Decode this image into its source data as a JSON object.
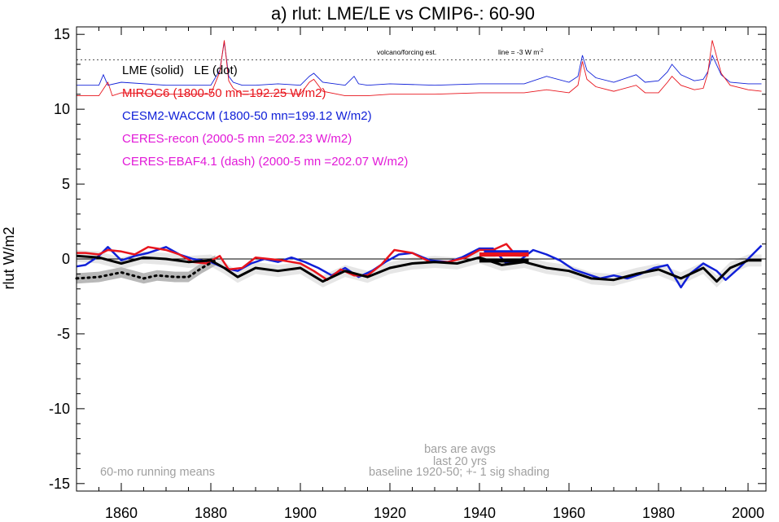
{
  "colors": {
    "lme": "#000000",
    "miroc6": "#e8141c",
    "cesm2": "#1020d8",
    "ceres": "#e21ad8",
    "shading_dark": "#b8b8b8",
    "shading_light": "#e6e6e6",
    "note_gray": "#a0a0a0"
  },
  "chart_data": {
    "type": "line",
    "title": "a) rlut: LME/LE vs CMIP6-: 60-90",
    "ylabel": "rlut W/m2",
    "xlim": [
      1850,
      2004
    ],
    "ylim": [
      -15.5,
      15.5
    ],
    "xticks": [
      1860,
      1880,
      1900,
      1920,
      1940,
      1960,
      1980,
      2000
    ],
    "yticks": [
      15,
      10,
      5,
      0,
      -5,
      -10,
      -15
    ],
    "reference_line": {
      "label": "line = -3 W m",
      "superscript": "-2",
      "y": 13.3
    },
    "forcing_label": "volcano/forcing est.",
    "legend": {
      "lme_le": "LME (solid)   LE (dot)",
      "miroc6": "MIROC6 (1800-50 mn=192.25 W/m2)",
      "cesm2": "CESM2-WACCM (1800-50 mn=199.12 W/m2)",
      "ceres_recon": "CERES-recon (2000-5 mn =202.23 W/m2)",
      "ceres_ebaf": "CERES-EBAF4.1 (dash) (2000-5 mn =202.07 W/m2)"
    },
    "notes": {
      "running_mean": "60-mo running means",
      "bars_line1": "bars are avgs",
      "bars_line2": "last 20 yrs",
      "baseline": "baseline 1920-50; +- 1 sig shading"
    },
    "series": [
      {
        "name": "LME (solid)",
        "x": [
          1850,
          1855,
          1860,
          1865,
          1870,
          1875,
          1880,
          1883,
          1886,
          1890,
          1895,
          1900,
          1905,
          1910,
          1915,
          1920,
          1925,
          1930,
          1935,
          1940,
          1945,
          1950,
          1955,
          1960,
          1965,
          1970,
          1975,
          1980,
          1985,
          1990,
          1993,
          1996,
          2000,
          2003
        ],
        "y": [
          0.2,
          0.1,
          -0.3,
          0.1,
          0.0,
          -0.2,
          -0.1,
          -0.6,
          -1.2,
          -0.6,
          -0.8,
          -0.6,
          -1.5,
          -0.8,
          -1.2,
          -0.6,
          -0.3,
          -0.2,
          -0.3,
          0.1,
          -0.4,
          -0.2,
          -0.6,
          -0.8,
          -1.3,
          -1.4,
          -1.0,
          -0.7,
          -1.3,
          -0.6,
          -1.5,
          -0.6,
          -0.1,
          -0.1
        ]
      },
      {
        "name": "LE (dot)",
        "x": [
          1850,
          1855,
          1860,
          1865,
          1868,
          1872,
          1875,
          1878,
          1881
        ],
        "y": [
          -1.3,
          -1.2,
          -0.9,
          -1.3,
          -1.1,
          -1.2,
          -1.2,
          -0.6,
          -0.1
        ]
      },
      {
        "name": "MIROC6",
        "x": [
          1850,
          1852,
          1855,
          1857,
          1860,
          1863,
          1866,
          1870,
          1873,
          1876,
          1879,
          1882,
          1884,
          1887,
          1890,
          1893,
          1896,
          1900,
          1903,
          1906,
          1909,
          1912,
          1915,
          1918,
          1921,
          1925,
          1929,
          1933,
          1937,
          1940,
          1943,
          1946,
          1948
        ],
        "y": [
          0.4,
          0.4,
          0.3,
          0.6,
          0.5,
          0.3,
          0.8,
          0.6,
          0.3,
          -0.2,
          -0.3,
          0.2,
          -0.7,
          -0.6,
          0.1,
          0.0,
          -0.1,
          -0.3,
          -0.8,
          -1.4,
          -0.7,
          -1.1,
          -1.1,
          -0.4,
          0.6,
          0.4,
          -0.2,
          -0.2,
          0.1,
          0.6,
          0.6,
          1.0,
          0.3
        ]
      },
      {
        "name": "CESM2-WACCM",
        "x": [
          1850,
          1852,
          1855,
          1857,
          1860,
          1863,
          1866,
          1870,
          1873,
          1876,
          1880,
          1883,
          1886,
          1889,
          1892,
          1895,
          1898,
          1901,
          1904,
          1907,
          1910,
          1913,
          1916,
          1919,
          1922,
          1925,
          1929,
          1933,
          1936,
          1940,
          1943,
          1946,
          1949,
          1952,
          1955,
          1958,
          1961,
          1964,
          1967,
          1970,
          1973,
          1976,
          1979,
          1982,
          1985,
          1987,
          1990,
          1993,
          1995,
          1998,
          2001,
          2003
        ],
        "y": [
          -0.5,
          -0.4,
          0.2,
          0.8,
          -0.1,
          0.2,
          0.4,
          0.8,
          0.3,
          0.0,
          -0.2,
          -0.6,
          -0.8,
          -0.3,
          0.0,
          -0.2,
          0.1,
          -0.2,
          -0.6,
          -1.1,
          -0.6,
          -1.2,
          -0.8,
          -0.2,
          0.3,
          0.4,
          -0.1,
          -0.2,
          0.1,
          0.7,
          0.7,
          -0.3,
          -0.1,
          0.6,
          0.3,
          -0.1,
          -0.7,
          -1.0,
          -1.3,
          -1.1,
          -1.3,
          -1.0,
          -0.6,
          -0.4,
          -1.9,
          -1.0,
          -0.3,
          -0.8,
          -1.4,
          -0.6,
          0.3,
          0.9
        ]
      },
      {
        "name": "volcano/forcing est. (LME)",
        "x": [
          1850,
          1855,
          1856,
          1857,
          1860,
          1870,
          1880,
          1882,
          1883,
          1884,
          1885,
          1887,
          1890,
          1895,
          1900,
          1902,
          1903,
          1905,
          1910,
          1912,
          1913,
          1915,
          1920,
          1930,
          1940,
          1950,
          1955,
          1960,
          1962,
          1963,
          1964,
          1966,
          1970,
          1975,
          1977,
          1980,
          1982,
          1983,
          1985,
          1988,
          1990,
          1991,
          1992,
          1994,
          1996,
          2000,
          2003
        ],
        "y": [
          11.6,
          11.6,
          12.3,
          11.6,
          11.8,
          11.6,
          11.6,
          12.6,
          14.5,
          12.2,
          11.8,
          11.6,
          11.6,
          11.7,
          11.6,
          12.2,
          12.4,
          11.8,
          11.6,
          12.2,
          11.7,
          11.6,
          11.7,
          11.6,
          11.7,
          11.7,
          12.2,
          11.8,
          12.2,
          13.6,
          12.6,
          12.1,
          11.8,
          12.3,
          11.8,
          11.9,
          12.5,
          13.0,
          12.3,
          11.9,
          12.0,
          12.5,
          13.6,
          12.3,
          11.8,
          11.7,
          11.7
        ]
      },
      {
        "name": "volcano/forcing est. (MIROC6)",
        "x": [
          1850,
          1855,
          1857,
          1858,
          1860,
          1870,
          1880,
          1882,
          1883,
          1884,
          1885,
          1887,
          1890,
          1895,
          1900,
          1902,
          1903,
          1905,
          1910,
          1915,
          1920,
          1930,
          1940,
          1950,
          1955,
          1960,
          1962,
          1963,
          1964,
          1966,
          1970,
          1975,
          1977,
          1980,
          1982,
          1983,
          1985,
          1988,
          1990,
          1991,
          1992,
          1994,
          1996,
          2000,
          2003
        ],
        "y": [
          10.9,
          10.9,
          11.8,
          10.9,
          11.1,
          11.0,
          11.0,
          12.5,
          14.6,
          11.9,
          11.4,
          11.0,
          11.0,
          11.1,
          11.0,
          11.8,
          12.0,
          11.2,
          10.9,
          10.9,
          11.0,
          11.0,
          11.1,
          11.1,
          11.3,
          11.1,
          11.6,
          13.2,
          12.0,
          11.5,
          11.2,
          11.6,
          11.1,
          11.1,
          11.8,
          12.2,
          11.6,
          11.3,
          11.4,
          12.4,
          14.6,
          12.4,
          11.6,
          11.3,
          11.2
        ]
      }
    ],
    "bars": [
      {
        "series": "LME",
        "x": [
          1940,
          1951
        ],
        "y": -0.1
      },
      {
        "series": "CESM2-WACCM",
        "x": [
          1941,
          1951
        ],
        "y": 0.45
      },
      {
        "series": "MIROC6",
        "x": [
          1940,
          1951
        ],
        "y": 0.3
      }
    ]
  }
}
